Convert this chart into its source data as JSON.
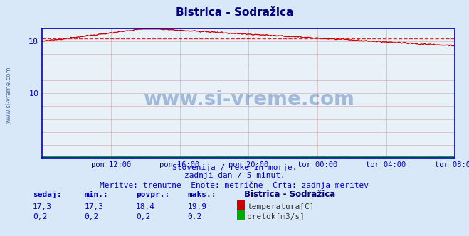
{
  "title": "Bistrica - Sodražica",
  "title_color": "#000080",
  "background_color": "#d8e8f8",
  "plot_bg_color": "#e8f0f8",
  "grid_color": "#c8a0a0",
  "xlabel_ticks": [
    "pon 12:00",
    "pon 16:00",
    "pon 20:00",
    "tor 00:00",
    "tor 04:00",
    "tor 08:00"
  ],
  "ylim": [
    0,
    20
  ],
  "xlim": [
    0,
    288
  ],
  "temp_avg": 18.4,
  "temp_min": 17.3,
  "temp_max": 19.9,
  "temp_current": 17.3,
  "flow_current": 0.2,
  "flow_min": 0.2,
  "flow_avg": 0.2,
  "flow_max": 0.2,
  "temp_color": "#cc0000",
  "flow_color": "#00aa00",
  "avg_line_color": "#cc0000",
  "border_color": "#0000cc",
  "watermark_color": "#2255aa",
  "subtitle1": "Slovenija / reke in morje.",
  "subtitle2": "zadnji dan / 5 minut.",
  "subtitle3": "Meritve: trenutne  Enote: metrične  Črta: zadnja meritev",
  "legend_title": "Bistrica - Sodražica",
  "label_sedaj": "sedaj:",
  "label_min": "min.:",
  "label_povpr": "povpr.:",
  "label_maks": "maks.:",
  "label_temp": "temperatura[C]",
  "label_flow": "pretok[m3/s]",
  "left_label": "www.si-vreme.com"
}
